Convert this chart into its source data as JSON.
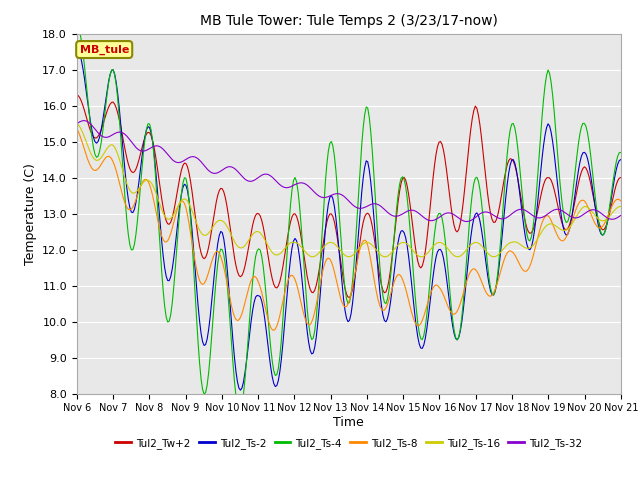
{
  "title": "MB Tule Tower: Tule Temps 2 (3/23/17-now)",
  "ylabel": "Temperature (C)",
  "xlabel": "Time",
  "ylim": [
    8.0,
    18.0
  ],
  "yticks": [
    8.0,
    9.0,
    10.0,
    11.0,
    12.0,
    13.0,
    14.0,
    15.0,
    16.0,
    17.0,
    18.0
  ],
  "xtick_labels": [
    "Nov 6",
    "Nov 7",
    "Nov 8",
    "Nov 9",
    "Nov 10",
    "Nov 11",
    "Nov 12",
    "Nov 13",
    "Nov 14",
    "Nov 15",
    "Nov 16",
    "Nov 17",
    "Nov 18",
    "Nov 19",
    "Nov 20",
    "Nov 21"
  ],
  "legend_label": "MB_tule",
  "colors": {
    "Tul2_Tw+2": "#cc0000",
    "Tul2_Ts-2": "#0000cc",
    "Tul2_Ts-4": "#00bb00",
    "Tul2_Ts-8": "#ff8800",
    "Tul2_Ts-16": "#cccc00",
    "Tul2_Ts-32": "#8800cc"
  },
  "bg_color": "#e8e8e8",
  "grid_color": "#ffffff"
}
